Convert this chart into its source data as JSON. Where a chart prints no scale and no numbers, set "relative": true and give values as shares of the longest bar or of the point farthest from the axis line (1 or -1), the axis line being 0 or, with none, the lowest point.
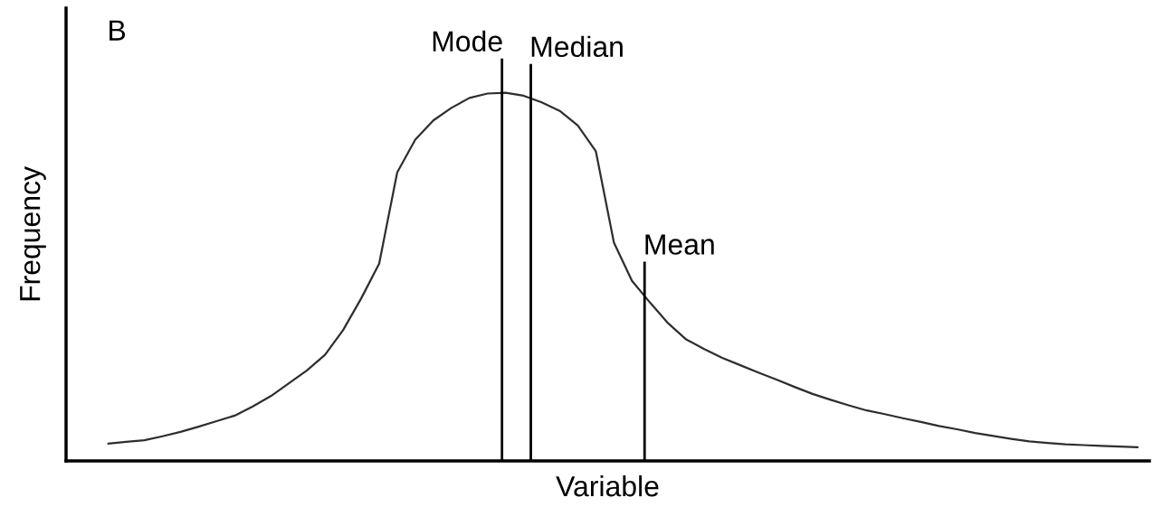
{
  "chart_data": {
    "type": "line",
    "relative": true,
    "categories": [
      null,
      null,
      null,
      null,
      null,
      null,
      null,
      null,
      null,
      null,
      null,
      null,
      null,
      null,
      null,
      null,
      null,
      null,
      null,
      null,
      null,
      null,
      null,
      null,
      null,
      null,
      null,
      null,
      null,
      null,
      null,
      null,
      null,
      null,
      null,
      null,
      null,
      null,
      null,
      null,
      null,
      null,
      null,
      null,
      null,
      null,
      null,
      null,
      null,
      null,
      null,
      null,
      null,
      null,
      null,
      null,
      null,
      null
    ],
    "values": [
      0.047,
      0.052,
      0.056,
      0.067,
      0.079,
      0.093,
      0.108,
      0.123,
      0.148,
      0.176,
      0.211,
      0.246,
      0.288,
      0.355,
      0.441,
      0.536,
      0.784,
      0.873,
      0.925,
      0.959,
      0.986,
      0.998,
      1.0,
      0.992,
      0.974,
      0.951,
      0.911,
      0.841,
      0.593,
      0.489,
      0.43,
      0.374,
      0.33,
      0.304,
      0.28,
      0.26,
      0.24,
      0.221,
      0.201,
      0.182,
      0.166,
      0.151,
      0.137,
      0.127,
      0.116,
      0.106,
      0.095,
      0.086,
      0.076,
      0.068,
      0.06,
      0.053,
      0.049,
      0.045,
      0.043,
      0.041,
      0.039,
      0.037
    ],
    "color": "#2e2e2e",
    "xlabel": "Variable",
    "ylabel": "Frequency",
    "annotations": [
      "B",
      "Mode",
      "Median",
      "Mean"
    ]
  }
}
